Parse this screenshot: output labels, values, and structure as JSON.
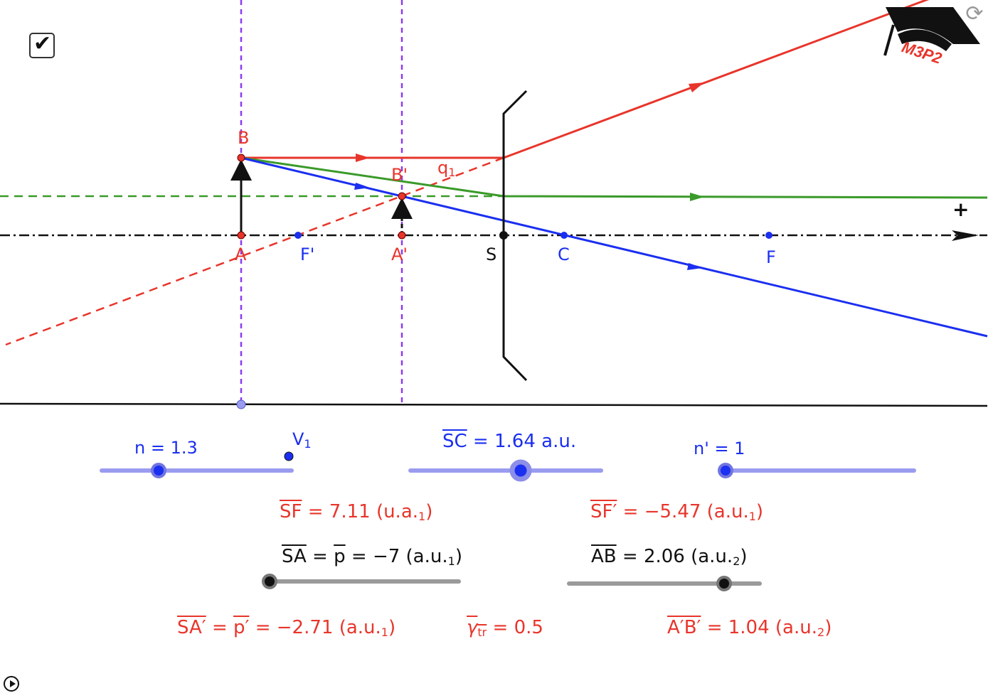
{
  "colors": {
    "red": "#e8352b",
    "green": "#3a9a2a",
    "blue": "#1b2ff0",
    "purple": "#8a3cf0",
    "slider_blue": "#9a9cf0",
    "slider_gray": "#9a9a9a"
  },
  "logo": {
    "text": "M3P2",
    "icon": "graduation-cap-icon"
  },
  "icons": {
    "checkbox": "check-icon",
    "refresh": "refresh-icon",
    "play": "play-icon"
  },
  "checkbox": {
    "checked": true
  },
  "points": {
    "B": "B",
    "B_prime": "B'",
    "q1": "q",
    "q1_sub": "1",
    "A": "A",
    "F_prime": "F'",
    "A_prime": "A'",
    "S": "S",
    "C": "C",
    "F": "F",
    "axis_plus": "+"
  },
  "sliders": {
    "n": {
      "label": "n = 1.3",
      "value": 1.3
    },
    "V1": {
      "label": "V",
      "sub": "1"
    },
    "SC": {
      "name": "SC",
      "text": " = 1.64 a.u.",
      "value": 1.64
    },
    "n_prime": {
      "label": "n' = 1",
      "value": 1
    },
    "SA": {
      "name": "SA",
      "eq": " = ",
      "p": "p",
      "text": " = −7 (a.u.",
      "sub": "1",
      "close": ")",
      "value": -7
    },
    "AB": {
      "name": "AB",
      "text": " =  2.06 (a.u.",
      "sub": "2",
      "close": ")",
      "value": 2.06
    }
  },
  "results": {
    "SF": {
      "name": "SF",
      "text": " = 7.11 (u.a.",
      "sub": "1",
      "close": ")"
    },
    "SF_prime": {
      "name": "SF′",
      "text": " = −5.47 (a.u.",
      "sub": "1",
      "close": ")"
    },
    "SA_prime": {
      "name": "SA′",
      "eq": " = ",
      "p": "p′",
      "text": " = −2.71 (a.u.",
      "sub": "1",
      "close": ")"
    },
    "gamma": {
      "name": "γ",
      "sub": "tr",
      "text": " = 0.5"
    },
    "AB_prime": {
      "name": "A′B′",
      "text": " = 1.04 (a.u.",
      "sub": "2",
      "close": ")"
    }
  }
}
